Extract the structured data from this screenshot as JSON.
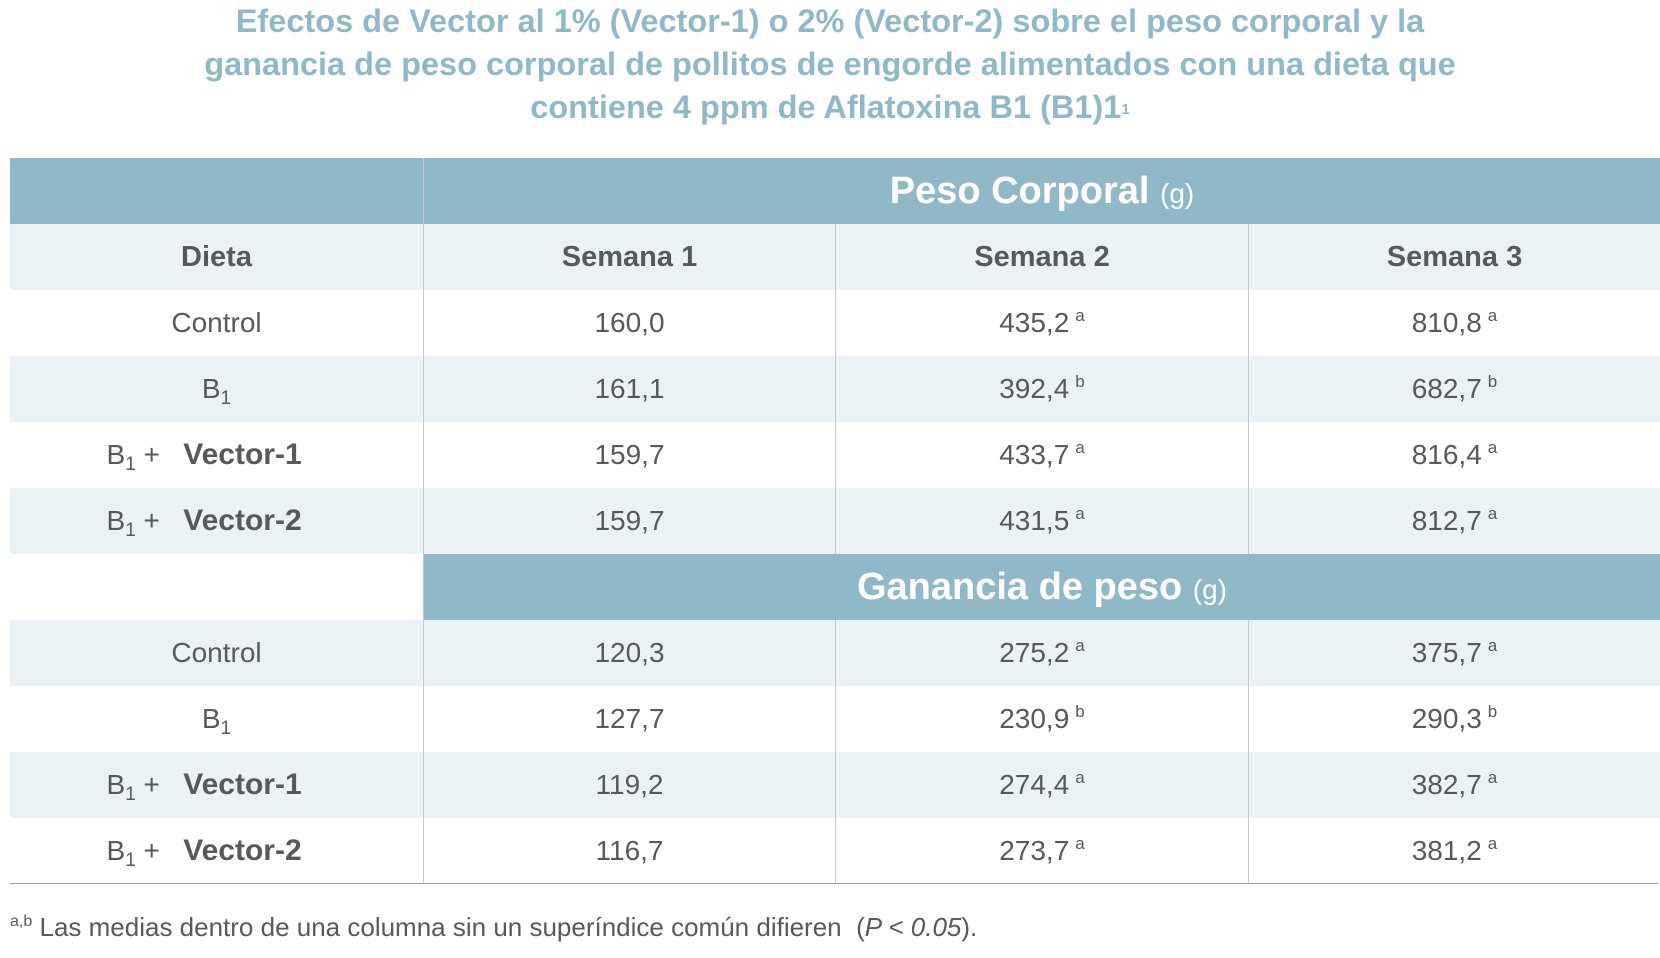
{
  "title": {
    "line1": "Efectos de Vector al 1% (Vector-1) o 2% (Vector-2) sobre el peso corporal y la",
    "line2": "ganancia de peso corporal de pollitos de engorde alimentados con una dieta que",
    "line3": "contiene 4 ppm de Aflatoxina B1 (B1)1",
    "line3_sup": "1"
  },
  "sections": {
    "body_weight": {
      "label": "Peso Corporal",
      "unit": "(g)"
    },
    "weight_gain": {
      "label": "Ganancia de peso",
      "unit": "(g)"
    }
  },
  "columns": {
    "diet": "Dieta",
    "week1": "Semana 1",
    "week2": "Semana 2",
    "week3": "Semana 3"
  },
  "diets": {
    "control": "Control",
    "b1_main": "B",
    "b1_sub": "1",
    "plus": "+",
    "vector1": "Vector-1",
    "vector2": "Vector-2"
  },
  "body_weight_rows": [
    {
      "w1": "160,0",
      "w2": "435,2",
      "w2_sup": "a",
      "w3": "810,8",
      "w3_sup": "a"
    },
    {
      "w1": "161,1",
      "w2": "392,4",
      "w2_sup": "b",
      "w3": "682,7",
      "w3_sup": "b"
    },
    {
      "w1": "159,7",
      "w2": "433,7",
      "w2_sup": "a",
      "w3": "816,4",
      "w3_sup": "a"
    },
    {
      "w1": "159,7",
      "w2": "431,5",
      "w2_sup": "a",
      "w3": "812,7",
      "w3_sup": "a"
    }
  ],
  "weight_gain_rows": [
    {
      "w1": "120,3",
      "w2": "275,2",
      "w2_sup": "a",
      "w3": "375,7",
      "w3_sup": "a"
    },
    {
      "w1": "127,7",
      "w2": "230,9",
      "w2_sup": "b",
      "w3": "290,3",
      "w3_sup": "b"
    },
    {
      "w1": "119,2",
      "w2": "274,4",
      "w2_sup": "a",
      "w3": "382,7",
      "w3_sup": "a"
    },
    {
      "w1": "116,7",
      "w2": "273,7",
      "w2_sup": "a",
      "w3": "381,2",
      "w3_sup": "a"
    }
  ],
  "footnote": {
    "sup": "a,b",
    "text": "Las medias dentro de una columna sin un superíndice común difieren",
    "stat_open": "(",
    "stat": "P < 0.05",
    "stat_close": ")."
  },
  "colors": {
    "title": "#8fb8c9",
    "header_band": "#8fb8c9",
    "light_band": "#eaf2f5",
    "text": "#58595b"
  }
}
